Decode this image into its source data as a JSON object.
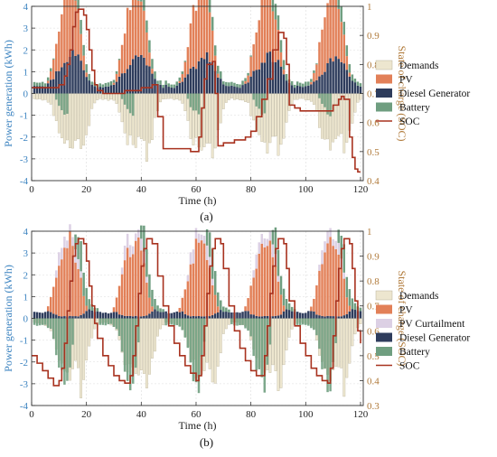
{
  "chart_data": [
    {
      "panel_label": "(a)",
      "type": "bar",
      "subtype": "stacked bars with step line on secondary axis",
      "xlabel": "Time (h)",
      "ylabel": "Power generation (kWh)",
      "y2label": "State of charge (SOC)",
      "xlim": [
        0,
        121
      ],
      "ylim": [
        -4,
        4
      ],
      "y2lim": [
        0.4,
        1.0
      ],
      "xticks": [
        "0",
        "20",
        "40",
        "60",
        "80",
        "100",
        "120"
      ],
      "yticks": [
        "-4",
        "-3",
        "-2",
        "-1",
        "0",
        "1",
        "2",
        "3",
        "4"
      ],
      "y2ticks": [
        "0.4",
        "0.5",
        "0.6",
        "0.7",
        "0.8",
        "0.9",
        "1"
      ],
      "grid": true,
      "legend_position": "right",
      "legend": [
        "Demands",
        "PV",
        "Diesel Generator",
        "Battery",
        "SOC"
      ],
      "series_colors": {
        "Demands": "#ede6cf",
        "PV": "#e28058",
        "Diesel Generator": "#2e3c5c",
        "Battery": "#6f9e80",
        "SOC": "#a8321f"
      },
      "daily_pattern": {
        "hours": [
          1,
          2,
          3,
          4,
          5,
          6,
          7,
          8,
          9,
          10,
          11,
          12,
          13,
          14,
          15,
          16,
          17,
          18,
          19,
          20,
          21,
          22,
          23,
          24
        ],
        "demand": [
          -0.25,
          -0.25,
          -0.25,
          -0.3,
          -0.3,
          -0.35,
          -0.45,
          -0.9,
          -1.4,
          -1.9,
          -2.1,
          -2.2,
          -2.3,
          -2.4,
          -2.3,
          -2.2,
          -2.1,
          -2.9,
          -2.5,
          -1.9,
          -1.3,
          -0.8,
          -0.45,
          -0.3
        ],
        "pv": [
          0,
          0,
          0,
          0,
          0,
          0.1,
          0.35,
          0.8,
          1.4,
          1.9,
          2.5,
          2.9,
          3.1,
          3.2,
          3.0,
          2.6,
          2.1,
          1.4,
          0.7,
          0.2,
          0,
          0,
          0,
          0
        ],
        "diesel": [
          0.35,
          0.3,
          0.3,
          0.3,
          0.35,
          0.45,
          0.55,
          0.7,
          0.9,
          1.0,
          1.1,
          1.3,
          1.55,
          1.7,
          1.8,
          1.7,
          1.6,
          1.4,
          1.1,
          0.8,
          0.6,
          0.45,
          0.35,
          0.3
        ],
        "battery": [
          0.35,
          0.3,
          0.3,
          0.35,
          0.35,
          0.3,
          0.25,
          0.1,
          -0.25,
          -0.55,
          -0.7,
          -0.9,
          -1.0,
          1.9,
          2.3,
          2.9,
          1.6,
          1.2,
          1.0,
          0.8,
          0.6,
          0.3,
          0.35,
          0.3
        ]
      },
      "soc": {
        "x": [
          0,
          8,
          10,
          12,
          13,
          14,
          15,
          16,
          17,
          18,
          19,
          20,
          21,
          22,
          23,
          24,
          26,
          30,
          34,
          38,
          40,
          44,
          46,
          48,
          58,
          60,
          61,
          62,
          63,
          64,
          66,
          67,
          68,
          70,
          74,
          78,
          80,
          82,
          84,
          86,
          88,
          90,
          92,
          93,
          94,
          96,
          98,
          100,
          102,
          104,
          108,
          110,
          112,
          113,
          114,
          116,
          117,
          118,
          119,
          120
        ],
        "y": [
          0.72,
          0.72,
          0.73,
          0.76,
          0.8,
          0.85,
          0.93,
          0.98,
          0.99,
          0.99,
          0.97,
          0.92,
          0.85,
          0.78,
          0.73,
          0.71,
          0.7,
          0.7,
          0.71,
          0.71,
          0.72,
          0.73,
          0.62,
          0.51,
          0.5,
          0.5,
          0.55,
          0.65,
          0.75,
          0.8,
          0.81,
          0.7,
          0.52,
          0.53,
          0.54,
          0.55,
          0.57,
          0.62,
          0.68,
          0.75,
          0.85,
          0.91,
          0.89,
          0.8,
          0.66,
          0.65,
          0.64,
          0.64,
          0.64,
          0.64,
          0.64,
          0.66,
          0.68,
          0.69,
          0.68,
          0.55,
          0.48,
          0.44,
          0.43,
          0.43
        ]
      }
    },
    {
      "panel_label": "(b)",
      "type": "bar",
      "subtype": "stacked bars with step line on secondary axis",
      "xlabel": "Time (h)",
      "ylabel": "Power generation (kWh)",
      "y2label": "State of charge (SOC)",
      "xlim": [
        0,
        121
      ],
      "ylim": [
        -4,
        4
      ],
      "y2lim": [
        0.3,
        1.0
      ],
      "xticks": [
        "0",
        "20",
        "40",
        "60",
        "80",
        "100",
        "120"
      ],
      "yticks": [
        "-4",
        "-3",
        "-2",
        "-1",
        "0",
        "1",
        "2",
        "3",
        "4"
      ],
      "y2ticks": [
        "0.3",
        "0.4",
        "0.5",
        "0.6",
        "0.7",
        "0.8",
        "0.9",
        "1"
      ],
      "grid": true,
      "legend_position": "right",
      "legend": [
        "Demands",
        "PV",
        "PV Curtailment",
        "Diesel Generator",
        "Battery",
        "SOC"
      ],
      "series_colors": {
        "Demands": "#ede6cf",
        "PV": "#e28058",
        "PV Curtailment": "#dcd0e4",
        "Diesel Generator": "#2e3c5c",
        "Battery": "#6f9e80",
        "SOC": "#a8321f"
      },
      "daily_pattern": {
        "hours": [
          1,
          2,
          3,
          4,
          5,
          6,
          7,
          8,
          9,
          10,
          11,
          12,
          13,
          14,
          15,
          16,
          17,
          18,
          19,
          20,
          21,
          22,
          23,
          24
        ],
        "demand": [
          -0.2,
          -0.2,
          -0.2,
          -0.25,
          -0.3,
          -0.35,
          -0.5,
          -0.9,
          -1.5,
          -2.0,
          -2.2,
          -2.4,
          -2.6,
          -2.5,
          -2.3,
          -2.2,
          -2.3,
          -3.2,
          -2.8,
          -2.0,
          -1.4,
          -0.8,
          -0.45,
          -0.3
        ],
        "pv": [
          0,
          0,
          0,
          0,
          0,
          0.2,
          0.6,
          1.2,
          1.8,
          2.4,
          2.8,
          3.1,
          3.3,
          3.4,
          3.2,
          2.8,
          2.2,
          1.5,
          0.8,
          0.25,
          0,
          0,
          0,
          0
        ],
        "curtailment": [
          0,
          0,
          0,
          0,
          0,
          0,
          0,
          0,
          0.3,
          0.6,
          0.6,
          0.5,
          0.4,
          0.3,
          0.4,
          0.6,
          0.5,
          0.3,
          0,
          0,
          0,
          0,
          0,
          0
        ],
        "diesel": [
          0.3,
          0.25,
          0.25,
          0.25,
          0.3,
          0.3,
          0.3,
          0.2,
          0.15,
          0.1,
          0.1,
          0.1,
          0.1,
          0.1,
          0.1,
          0.1,
          0.1,
          0.15,
          0.2,
          0.3,
          0.4,
          0.35,
          0.3,
          0.3
        ],
        "battery": [
          -0.3,
          -0.3,
          -0.3,
          -0.3,
          -0.3,
          -0.4,
          -0.5,
          -0.9,
          -1.5,
          -2.2,
          -2.7,
          -3.0,
          -3.3,
          -2.0,
          -1.2,
          1.5,
          2.5,
          3.1,
          2.2,
          1.6,
          1.0,
          0.6,
          0.4,
          0.3
        ]
      },
      "soc": {
        "x": [
          0,
          2,
          4,
          6,
          8,
          10,
          11,
          12,
          13,
          14,
          15,
          16,
          17,
          18,
          19,
          20,
          21,
          22,
          23,
          24,
          26,
          28,
          30,
          32,
          34,
          36,
          37,
          38,
          39,
          40,
          41,
          42,
          43,
          44,
          46,
          48,
          50,
          52,
          54,
          56,
          58,
          60,
          61,
          62,
          63,
          64,
          65,
          66,
          67,
          68,
          69,
          70,
          72,
          74,
          76,
          78,
          80,
          82,
          84,
          85,
          86,
          87,
          88,
          89,
          90,
          91,
          92,
          93,
          94,
          96,
          98,
          100,
          102,
          104,
          106,
          108,
          109,
          110,
          111,
          112,
          113,
          114,
          115,
          116,
          117,
          118,
          119,
          120
        ],
        "y": [
          0.5,
          0.47,
          0.44,
          0.41,
          0.38,
          0.4,
          0.45,
          0.55,
          0.68,
          0.8,
          0.9,
          0.95,
          0.97,
          0.97,
          0.95,
          0.88,
          0.78,
          0.7,
          0.63,
          0.57,
          0.5,
          0.46,
          0.42,
          0.4,
          0.39,
          0.42,
          0.5,
          0.62,
          0.75,
          0.86,
          0.93,
          0.97,
          0.97,
          0.95,
          0.82,
          0.7,
          0.62,
          0.55,
          0.5,
          0.46,
          0.43,
          0.4,
          0.42,
          0.5,
          0.62,
          0.75,
          0.86,
          0.93,
          0.97,
          0.97,
          0.95,
          0.85,
          0.7,
          0.6,
          0.53,
          0.48,
          0.44,
          0.42,
          0.42,
          0.5,
          0.62,
          0.75,
          0.86,
          0.93,
          0.97,
          0.97,
          0.95,
          0.85,
          0.72,
          0.62,
          0.55,
          0.5,
          0.45,
          0.42,
          0.4,
          0.39,
          0.45,
          0.58,
          0.72,
          0.85,
          0.93,
          0.97,
          0.97,
          0.95,
          0.85,
          0.72,
          0.6,
          0.55
        ]
      }
    }
  ]
}
